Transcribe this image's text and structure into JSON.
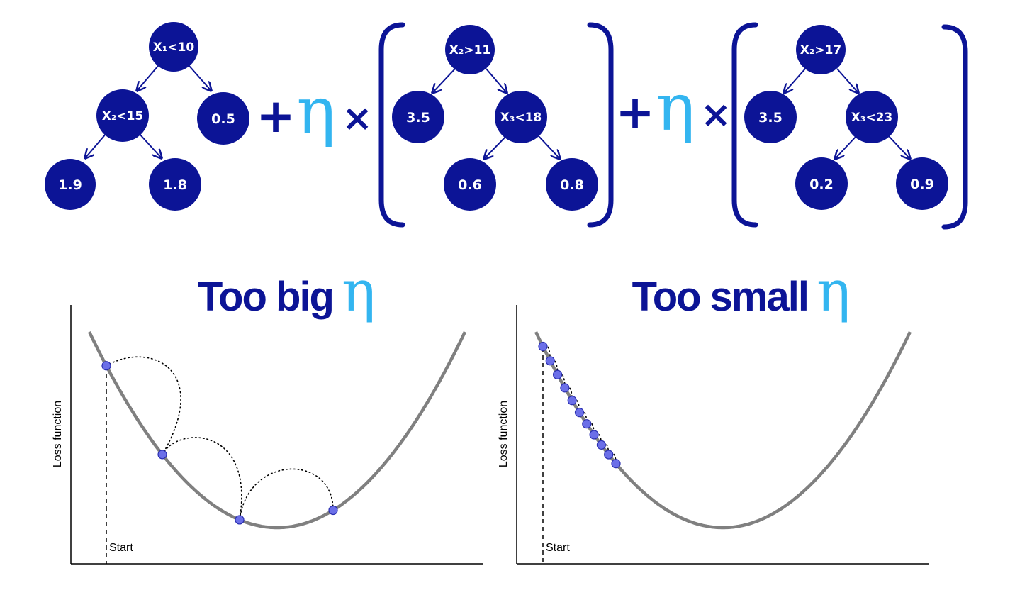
{
  "colors": {
    "node": "#0c1496",
    "operator": "#0c1496",
    "eta": "#33b5f0",
    "curve": "#808080",
    "step_point": "#6b6fe8"
  },
  "trees": [
    {
      "nodes": [
        {
          "id": "root",
          "label": "X₁<10"
        },
        {
          "id": "left",
          "label": "X₂<15"
        },
        {
          "id": "right",
          "label": "0.5"
        },
        {
          "id": "ll",
          "label": "1.9"
        },
        {
          "id": "lr",
          "label": "1.8"
        }
      ]
    },
    {
      "nodes": [
        {
          "id": "root",
          "label": "X₂>11"
        },
        {
          "id": "left",
          "label": "3.5"
        },
        {
          "id": "right",
          "label": "X₃<18"
        },
        {
          "id": "rl",
          "label": "0.6"
        },
        {
          "id": "rr",
          "label": "0.8"
        }
      ]
    },
    {
      "nodes": [
        {
          "id": "root",
          "label": "X₂>17"
        },
        {
          "id": "left",
          "label": "3.5"
        },
        {
          "id": "right",
          "label": "X₃<23"
        },
        {
          "id": "rl",
          "label": "0.2"
        },
        {
          "id": "rr",
          "label": "0.9"
        }
      ]
    }
  ],
  "operators": {
    "plus": "+",
    "eta": "η",
    "times": "×"
  },
  "panels": [
    {
      "title_text": "Too big",
      "eta": "η",
      "ylabel": "Loss function",
      "start_label": "Start",
      "steps": 4
    },
    {
      "title_text": "Too small",
      "eta": "η",
      "ylabel": "Loss function",
      "start_label": "Start",
      "steps": 11
    }
  ]
}
